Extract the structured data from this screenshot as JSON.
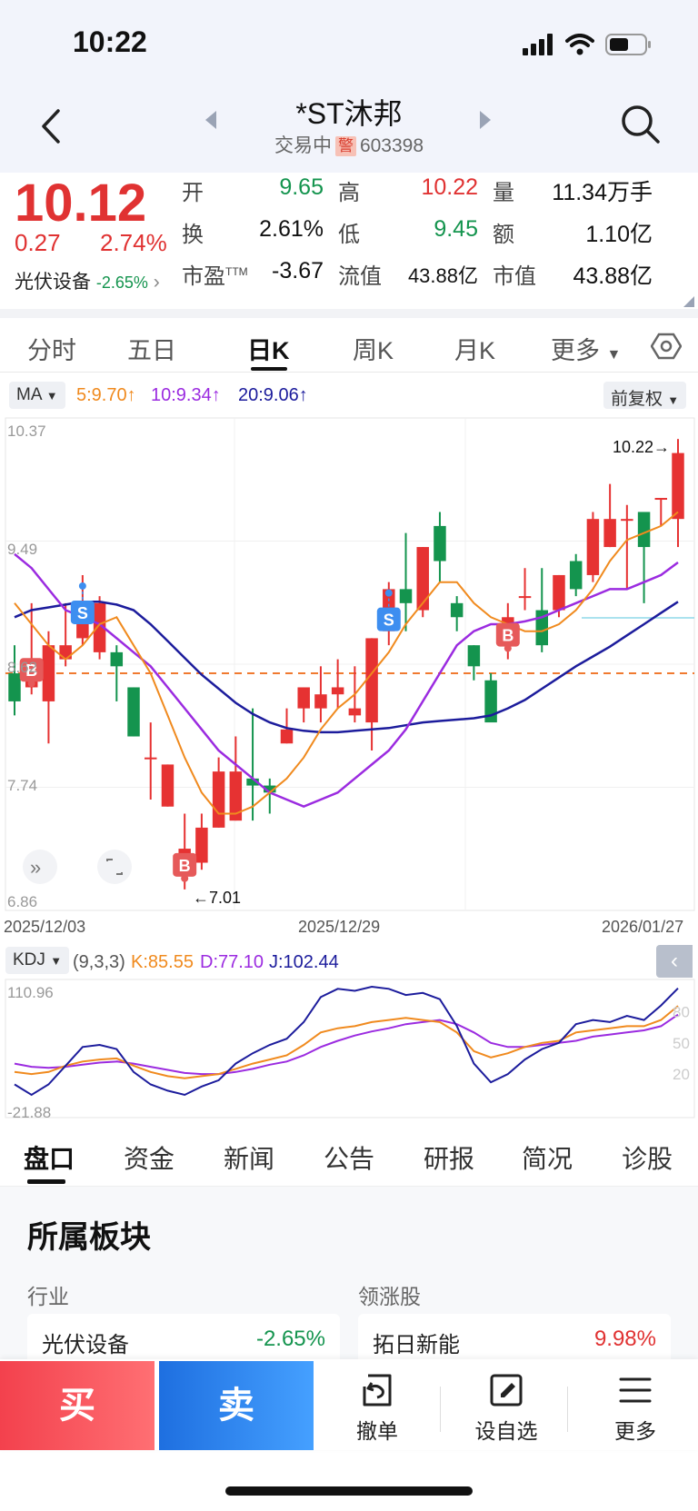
{
  "status": {
    "time": "10:22"
  },
  "header": {
    "title": "*ST沐邦",
    "status_text": "交易中",
    "warn_badge": "警",
    "code": "603398"
  },
  "quote": {
    "price": "10.12",
    "change": "0.27",
    "change_pct": "2.74%",
    "sector_name": "光伏设备",
    "sector_change": "-2.65%",
    "stats": [
      {
        "label": "开",
        "value": "9.65"
      },
      {
        "label": "高",
        "value": "10.22"
      },
      {
        "label": "量",
        "value": "11.34万手"
      },
      {
        "label": "换",
        "value": "2.61%"
      },
      {
        "label": "低",
        "value": "9.45"
      },
      {
        "label": "额",
        "value": "1.10亿"
      },
      {
        "label": "市盈TTM",
        "value": "-3.67"
      },
      {
        "label": "流值",
        "value": "43.88亿"
      },
      {
        "label": "市值",
        "value": "43.88亿"
      }
    ]
  },
  "chart_tabs": [
    "分时",
    "五日",
    "日K",
    "周K",
    "月K",
    "更多"
  ],
  "ma": {
    "label": "MA",
    "ma5": "5:9.70",
    "ma10": "10:9.34",
    "ma20": "20:9.06",
    "adjust": "前复权"
  },
  "kdj": {
    "label": "KDJ",
    "params": "(9,3,3)",
    "k": "K:85.55",
    "d": "D:77.10",
    "j": "J:102.44"
  },
  "chart_data": {
    "type": "candlestick",
    "price_axis": {
      "max": "10.37",
      "l2": "9.49",
      "l3": "8.62",
      "l4": "7.74",
      "min": "6.86",
      "ylim": [
        6.86,
        10.37
      ]
    },
    "dates": {
      "start": "2025/12/03",
      "mid": "2025/12/29",
      "end": "2026/01/27"
    },
    "high_marker": "10.22→",
    "low_marker": "←7.01",
    "reference_line": 8.55,
    "candles": [
      [
        8.55,
        8.35,
        8.75,
        8.25
      ],
      [
        8.45,
        8.5,
        9.05,
        8.4
      ],
      [
        8.35,
        8.75,
        8.85,
        8.05
      ],
      [
        8.65,
        8.75,
        9.05,
        8.6
      ],
      [
        8.8,
        9.05,
        9.25,
        8.75
      ],
      [
        8.7,
        9.05,
        9.1,
        8.65
      ],
      [
        8.7,
        8.6,
        8.75,
        8.35
      ],
      [
        8.45,
        8.1,
        8.45,
        8.1
      ],
      [
        7.95,
        7.95,
        8.2,
        7.65
      ],
      [
        7.6,
        7.9,
        7.9,
        7.6
      ],
      [
        7.15,
        7.3,
        7.55,
        7.01
      ],
      [
        7.2,
        7.45,
        7.55,
        7.15
      ],
      [
        7.45,
        7.85,
        7.95,
        7.45
      ],
      [
        7.5,
        7.85,
        8.1,
        7.5
      ],
      [
        7.8,
        7.75,
        8.3,
        7.5
      ],
      [
        7.75,
        7.7,
        7.8,
        7.55
      ],
      [
        8.05,
        8.15,
        8.3,
        8.05
      ],
      [
        8.3,
        8.45,
        8.45,
        8.2
      ],
      [
        8.3,
        8.4,
        8.6,
        8.2
      ],
      [
        8.4,
        8.45,
        8.65,
        8.3
      ],
      [
        8.25,
        8.3,
        8.6,
        8.2
      ],
      [
        8.2,
        8.8,
        8.8,
        8.0
      ],
      [
        8.85,
        9.15,
        9.2,
        8.75
      ],
      [
        9.15,
        9.05,
        9.55,
        8.85
      ],
      [
        9.0,
        9.45,
        9.45,
        8.95
      ],
      [
        9.6,
        9.35,
        9.7,
        9.2
      ],
      [
        9.05,
        8.95,
        9.1,
        8.85
      ],
      [
        8.75,
        8.6,
        8.75,
        8.5
      ],
      [
        8.5,
        8.2,
        8.55,
        8.25
      ],
      [
        8.8,
        8.95,
        9.05,
        8.65
      ],
      [
        9.1,
        9.1,
        9.3,
        9.0
      ],
      [
        9.0,
        8.75,
        9.3,
        8.7
      ],
      [
        9.0,
        9.25,
        9.25,
        8.95
      ],
      [
        9.35,
        9.15,
        9.4,
        9.1
      ],
      [
        9.25,
        9.65,
        9.7,
        9.2
      ],
      [
        9.45,
        9.65,
        9.9,
        9.45
      ],
      [
        9.65,
        9.65,
        9.75,
        9.15
      ],
      [
        9.7,
        9.45,
        9.7,
        9.05
      ],
      [
        9.8,
        9.8,
        9.8,
        9.6
      ],
      [
        9.65,
        10.12,
        10.22,
        9.45
      ]
    ],
    "ma5": [
      9.05,
      8.9,
      8.75,
      8.65,
      8.75,
      8.9,
      8.95,
      8.75,
      8.55,
      8.25,
      7.95,
      7.7,
      7.55,
      7.55,
      7.6,
      7.7,
      7.8,
      7.95,
      8.15,
      8.3,
      8.4,
      8.55,
      8.7,
      8.9,
      9.05,
      9.2,
      9.2,
      9.05,
      8.95,
      8.9,
      8.85,
      8.85,
      8.9,
      9.0,
      9.15,
      9.35,
      9.5,
      9.55,
      9.6,
      9.7
    ],
    "ma10": [
      9.4,
      9.3,
      9.15,
      9.0,
      8.95,
      8.9,
      8.8,
      8.7,
      8.6,
      8.45,
      8.3,
      8.15,
      8.0,
      7.9,
      7.8,
      7.7,
      7.65,
      7.6,
      7.65,
      7.7,
      7.8,
      7.9,
      8.0,
      8.15,
      8.35,
      8.55,
      8.75,
      8.85,
      8.9,
      8.9,
      8.92,
      8.95,
      9.0,
      9.05,
      9.1,
      9.15,
      9.15,
      9.2,
      9.25,
      9.34
    ],
    "ma20": [
      8.95,
      9.0,
      9.02,
      9.04,
      9.06,
      9.06,
      9.04,
      9.0,
      8.9,
      8.78,
      8.66,
      8.54,
      8.44,
      8.34,
      8.26,
      8.2,
      8.16,
      8.14,
      8.13,
      8.13,
      8.14,
      8.15,
      8.16,
      8.18,
      8.2,
      8.21,
      8.22,
      8.23,
      8.25,
      8.3,
      8.36,
      8.44,
      8.52,
      8.6,
      8.67,
      8.74,
      8.82,
      8.9,
      8.98,
      9.06
    ],
    "signals": [
      {
        "type": "B",
        "index": 1
      },
      {
        "type": "S",
        "index": 4
      },
      {
        "type": "B",
        "index": 10
      },
      {
        "type": "S",
        "index": 22
      },
      {
        "type": "B",
        "index": 29
      }
    ],
    "kdj_axis": {
      "max": "110.96",
      "min": "-21.88",
      "ylim": [
        -21.88,
        110.96
      ],
      "r80": "80",
      "r50": "50",
      "r20": "20"
    },
    "k_series": [
      22,
      20,
      22,
      28,
      32,
      34,
      35,
      28,
      22,
      18,
      16,
      18,
      20,
      25,
      30,
      34,
      38,
      48,
      60,
      64,
      66,
      70,
      72,
      74,
      72,
      70,
      60,
      42,
      36,
      40,
      46,
      50,
      52,
      60,
      62,
      64,
      66,
      66,
      72,
      85.55
    ],
    "d_series": [
      30,
      27,
      26,
      27,
      29,
      31,
      32,
      30,
      27,
      24,
      21,
      20,
      20,
      22,
      25,
      29,
      32,
      38,
      46,
      52,
      57,
      61,
      64,
      68,
      70,
      72,
      68,
      60,
      50,
      46,
      46,
      48,
      50,
      52,
      56,
      58,
      60,
      62,
      66,
      77.1
    ],
    "j_series": [
      10,
      0,
      10,
      28,
      46,
      48,
      44,
      22,
      10,
      4,
      0,
      8,
      14,
      30,
      40,
      48,
      54,
      70,
      94,
      102,
      100,
      104,
      102,
      96,
      98,
      92,
      66,
      30,
      12,
      20,
      34,
      44,
      50,
      68,
      72,
      70,
      76,
      72,
      86,
      102.44
    ]
  },
  "bottom_tabs": [
    "盘口",
    "资金",
    "新闻",
    "公告",
    "研报",
    "简况",
    "诊股"
  ],
  "section": {
    "title": "所属板块",
    "industry_label": "行业",
    "leader_label": "领涨股",
    "industry": {
      "name": "光伏设备",
      "pct": "-2.65%"
    },
    "leader": {
      "name": "拓日新能",
      "pct": "9.98%"
    }
  },
  "actions": {
    "buy": "买",
    "sell": "卖",
    "cancel": "撤单",
    "watch": "设自选",
    "more": "更多"
  }
}
